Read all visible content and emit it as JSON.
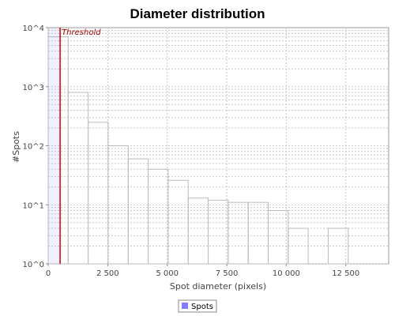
{
  "chart_data": {
    "type": "bar",
    "title": "Diameter distribution",
    "xlabel": "Spot diameter (pixels)",
    "ylabel": "#Spots",
    "xlim": [
      0,
      14300
    ],
    "ylim": [
      1,
      10000
    ],
    "yscale": "log",
    "grid": true,
    "x_ticks": [
      0,
      2500,
      5000,
      7500,
      10000,
      12500
    ],
    "x_tick_labels": [
      "0",
      "2 500",
      "5 000",
      "7 500",
      "10 000",
      "12 500"
    ],
    "y_ticks": [
      1,
      10,
      100,
      1000,
      10000
    ],
    "y_tick_labels": [
      "10^0",
      "10^1",
      "10^2",
      "10^3",
      "10^4"
    ],
    "bin_width": 840,
    "series": [
      {
        "name": "Spots",
        "color": "#8080ff",
        "bins": [
          {
            "x0": 0,
            "x1": 840,
            "value": 7000
          },
          {
            "x0": 840,
            "x1": 1680,
            "value": 800
          },
          {
            "x0": 1680,
            "x1": 2520,
            "value": 250
          },
          {
            "x0": 2520,
            "x1": 3360,
            "value": 100
          },
          {
            "x0": 3360,
            "x1": 4200,
            "value": 60
          },
          {
            "x0": 4200,
            "x1": 5040,
            "value": 40
          },
          {
            "x0": 5040,
            "x1": 5880,
            "value": 26
          },
          {
            "x0": 5880,
            "x1": 6720,
            "value": 13
          },
          {
            "x0": 6720,
            "x1": 7560,
            "value": 12
          },
          {
            "x0": 7560,
            "x1": 8400,
            "value": 11
          },
          {
            "x0": 8400,
            "x1": 9240,
            "value": 11
          },
          {
            "x0": 9240,
            "x1": 10080,
            "value": 8
          },
          {
            "x0": 10080,
            "x1": 10920,
            "value": 4
          },
          {
            "x0": 11760,
            "x1": 12600,
            "value": 4
          }
        ]
      }
    ],
    "threshold": {
      "label": "Threshold",
      "x": 500,
      "color": "#cc0000"
    },
    "legend": {
      "position": "bottom",
      "entries": [
        "Spots"
      ]
    }
  }
}
